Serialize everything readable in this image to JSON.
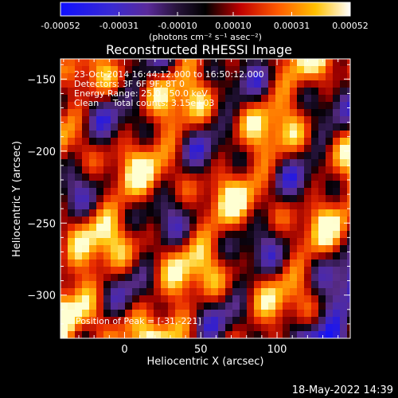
{
  "colorbar": {
    "ticks": [
      -0.00052,
      -0.00031,
      -0.0001,
      0.0001,
      0.00031,
      0.00052
    ],
    "tick_labels": [
      "-0.00052",
      "-0.00031",
      "-0.00010",
      "0.00010",
      "0.00031",
      "0.00052"
    ],
    "units_label": "(photons cm⁻² s⁻¹ asec⁻²)",
    "range": [
      -0.00052,
      0.00052
    ]
  },
  "info": {
    "line1": "23-Oct-2014 16:44:12.000 to 16:50:12.000",
    "line2": "Detectors: 3F 6F 9F, 8T 0",
    "line3": "Energy Range: 25.0 - 50.0 keV",
    "line4": "Clean     Total counts: 3.15e+03",
    "peak": "Position of Peak = [-31,-221]"
  },
  "datestamp": "18-May-2022 14:39",
  "chart_data": {
    "type": "heatmap",
    "title": "Reconstructed RHESSI Image",
    "xlabel": "Heliocentric X (arcsec)",
    "ylabel": "Heliocentric Y (arcsec)",
    "xlim": [
      -42,
      148
    ],
    "ylim": [
      -330,
      -136
    ],
    "xticks": [
      0,
      50,
      100
    ],
    "yticks": [
      -150,
      -200,
      -250,
      -300
    ],
    "grid": false,
    "colormap": "RHESSI red-temperature (blue-purple-black-red-orange-yellow-white)",
    "peak_position": [
      -31,
      -221
    ]
  }
}
